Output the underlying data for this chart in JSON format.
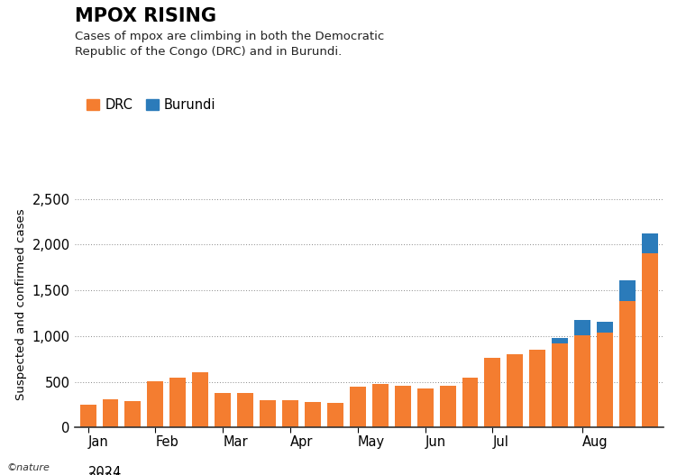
{
  "title": "MPOX RISING",
  "subtitle": "Cases of mpox are climbing in both the Democratic\nRepublic of the Congo (DRC) and in Burundi.",
  "ylabel": "Suspected and confirmed cases",
  "drc_color": "#f47d30",
  "burundi_color": "#2b7bba",
  "background_color": "#ffffff",
  "ylim": [
    0,
    2700
  ],
  "yticks": [
    0,
    500,
    1000,
    1500,
    2000,
    2500
  ],
  "month_labels": [
    "Jan",
    "Feb",
    "Mar",
    "Apr",
    "May",
    "Jun",
    "Jul",
    "Aug"
  ],
  "drc_values": [
    250,
    305,
    285,
    510,
    545,
    600,
    375,
    380,
    295,
    295,
    275,
    265,
    450,
    475,
    460,
    430,
    460,
    540,
    760,
    800,
    850,
    920,
    1010,
    1040,
    1380,
    1900
  ],
  "burundi_values": [
    0,
    0,
    0,
    0,
    0,
    0,
    0,
    0,
    0,
    0,
    0,
    0,
    0,
    0,
    0,
    0,
    0,
    0,
    0,
    0,
    0,
    55,
    170,
    115,
    225,
    220
  ],
  "month_bar_counts": [
    3,
    3,
    3,
    3,
    3,
    3,
    4,
    4
  ],
  "nature_credit": "©nature"
}
